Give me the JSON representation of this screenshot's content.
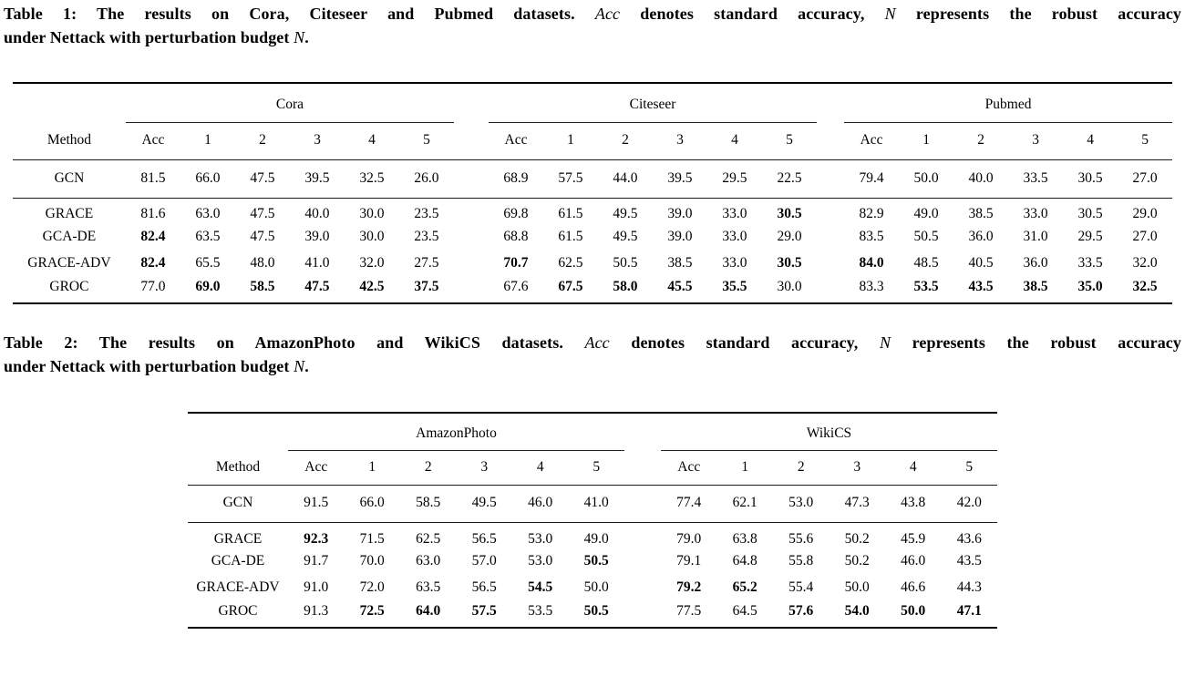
{
  "page": {
    "background": "#ffffff",
    "text_color": "#000000",
    "rule_color": "#000000"
  },
  "tables": [
    {
      "name": "table-1",
      "caption_lines": [
        [
          {
            "text": "Table 1: The results on Cora, Citeseer and Pubmed datasets. ",
            "italic": false
          },
          {
            "text": "Acc",
            "italic": true
          },
          {
            "text": " denotes standard accuracy, ",
            "italic": false
          },
          {
            "text": "N",
            "italic": true
          },
          {
            "text": " represents the robust accuracy",
            "italic": false
          }
        ],
        [
          {
            "text": "under Nettack with perturbation budget ",
            "italic": false
          },
          {
            "text": "N",
            "italic": true
          },
          {
            "text": ".",
            "italic": false
          }
        ]
      ],
      "method_header": "Method",
      "groups": [
        "Cora",
        "Citeseer",
        "Pubmed"
      ],
      "sub_headers": [
        "Acc",
        "1",
        "2",
        "3",
        "4",
        "5"
      ],
      "row_groups": [
        {
          "rows": [
            {
              "method": "GCN",
              "values": [
                "81.5",
                "66.0",
                "47.5",
                "39.5",
                "32.5",
                "26.0",
                "68.9",
                "57.5",
                "44.0",
                "39.5",
                "29.5",
                "22.5",
                "79.4",
                "50.0",
                "40.0",
                "33.5",
                "30.5",
                "27.0"
              ],
              "bold": []
            }
          ]
        },
        {
          "rows": [
            {
              "method": "GRACE",
              "values": [
                "81.6",
                "63.0",
                "47.5",
                "40.0",
                "30.0",
                "23.5",
                "69.8",
                "61.5",
                "49.5",
                "39.0",
                "33.0",
                "30.5",
                "82.9",
                "49.0",
                "38.5",
                "33.0",
                "30.5",
                "29.0"
              ],
              "bold": [
                11
              ]
            },
            {
              "method": "GCA-DE",
              "values": [
                "82.4",
                "63.5",
                "47.5",
                "39.0",
                "30.0",
                "23.5",
                "68.8",
                "61.5",
                "49.5",
                "39.0",
                "33.0",
                "29.0",
                "83.5",
                "50.5",
                "36.0",
                "31.0",
                "29.5",
                "27.0"
              ],
              "bold": [
                0
              ]
            },
            {
              "method": "GRACE-ADV",
              "values": [
                "82.4",
                "65.5",
                "48.0",
                "41.0",
                "32.0",
                "27.5",
                "70.7",
                "62.5",
                "50.5",
                "38.5",
                "33.0",
                "30.5",
                "84.0",
                "48.5",
                "40.5",
                "36.0",
                "33.5",
                "32.0"
              ],
              "bold": [
                0,
                6,
                11,
                12
              ]
            },
            {
              "method": "GROC",
              "values": [
                "77.0",
                "69.0",
                "58.5",
                "47.5",
                "42.5",
                "37.5",
                "67.6",
                "67.5",
                "58.0",
                "45.5",
                "35.5",
                "30.0",
                "83.3",
                "53.5",
                "43.5",
                "38.5",
                "35.0",
                "32.5"
              ],
              "bold": [
                1,
                2,
                3,
                4,
                5,
                7,
                8,
                9,
                10,
                13,
                14,
                15,
                16,
                17
              ]
            }
          ]
        }
      ]
    },
    {
      "name": "table-2",
      "caption_lines": [
        [
          {
            "text": "Table 2: The results on AmazonPhoto and WikiCS datasets. ",
            "italic": false
          },
          {
            "text": "Acc",
            "italic": true
          },
          {
            "text": " denotes standard accuracy, ",
            "italic": false
          },
          {
            "text": "N",
            "italic": true
          },
          {
            "text": " represents the robust accuracy",
            "italic": false
          }
        ],
        [
          {
            "text": "under Nettack with perturbation budget ",
            "italic": false
          },
          {
            "text": "N",
            "italic": true
          },
          {
            "text": ".",
            "italic": false
          }
        ]
      ],
      "method_header": "Method",
      "groups": [
        "AmazonPhoto",
        "WikiCS"
      ],
      "sub_headers": [
        "Acc",
        "1",
        "2",
        "3",
        "4",
        "5"
      ],
      "row_groups": [
        {
          "rows": [
            {
              "method": "GCN",
              "values": [
                "91.5",
                "66.0",
                "58.5",
                "49.5",
                "46.0",
                "41.0",
                "77.4",
                "62.1",
                "53.0",
                "47.3",
                "43.8",
                "42.0"
              ],
              "bold": []
            }
          ]
        },
        {
          "rows": [
            {
              "method": "GRACE",
              "values": [
                "92.3",
                "71.5",
                "62.5",
                "56.5",
                "53.0",
                "49.0",
                "79.0",
                "63.8",
                "55.6",
                "50.2",
                "45.9",
                "43.6"
              ],
              "bold": [
                0
              ]
            },
            {
              "method": "GCA-DE",
              "values": [
                "91.7",
                "70.0",
                "63.0",
                "57.0",
                "53.0",
                "50.5",
                "79.1",
                "64.8",
                "55.8",
                "50.2",
                "46.0",
                "43.5"
              ],
              "bold": [
                5
              ]
            },
            {
              "method": "GRACE-ADV",
              "values": [
                "91.0",
                "72.0",
                "63.5",
                "56.5",
                "54.5",
                "50.0",
                "79.2",
                "65.2",
                "55.4",
                "50.0",
                "46.6",
                "44.3"
              ],
              "bold": [
                4,
                6,
                7
              ]
            },
            {
              "method": "GROC",
              "values": [
                "91.3",
                "72.5",
                "64.0",
                "57.5",
                "53.5",
                "50.5",
                "77.5",
                "64.5",
                "57.6",
                "54.0",
                "50.0",
                "47.1"
              ],
              "bold": [
                1,
                2,
                3,
                5,
                8,
                9,
                10,
                11
              ]
            }
          ]
        }
      ]
    }
  ]
}
